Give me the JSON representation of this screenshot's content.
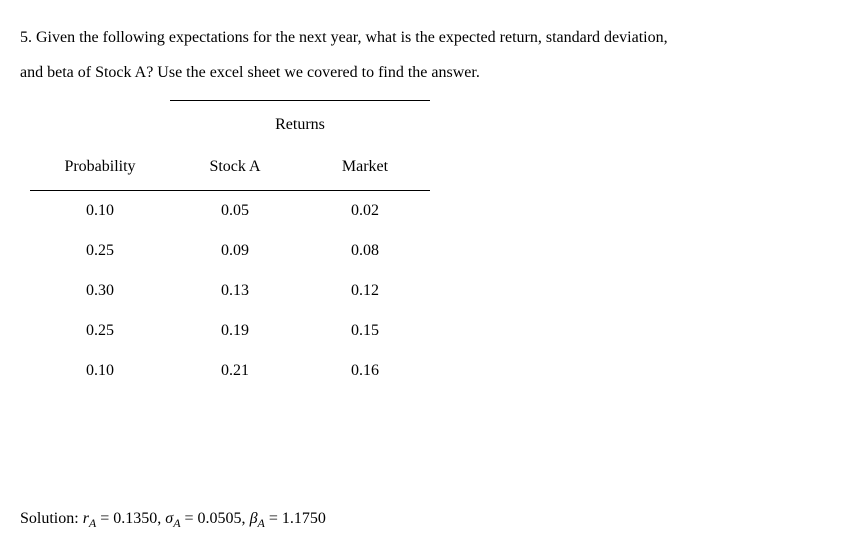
{
  "question": {
    "line1": "5. Given the following expectations for the next year, what is the expected return, standard deviation,",
    "line2": "and beta of Stock A? Use the excel sheet we covered to find the answer."
  },
  "table": {
    "super_header": "Returns",
    "columns": [
      "Probability",
      "Stock A",
      "Market"
    ],
    "rows": [
      [
        "0.10",
        "0.05",
        "0.02"
      ],
      [
        "0.25",
        "0.09",
        "0.08"
      ],
      [
        "0.30",
        "0.13",
        "0.12"
      ],
      [
        "0.25",
        "0.19",
        "0.15"
      ],
      [
        "0.10",
        "0.21",
        "0.16"
      ]
    ]
  },
  "solution": {
    "label": "Solution: ",
    "r_sym": "r",
    "r_sub": "A",
    "r_val": " = 0.1350, ",
    "sigma_sym": "σ",
    "sigma_sub": "A",
    "sigma_val": " = 0.0505, ",
    "beta_sym": "β",
    "beta_sub": "A",
    "beta_val": " = 1.1750"
  }
}
